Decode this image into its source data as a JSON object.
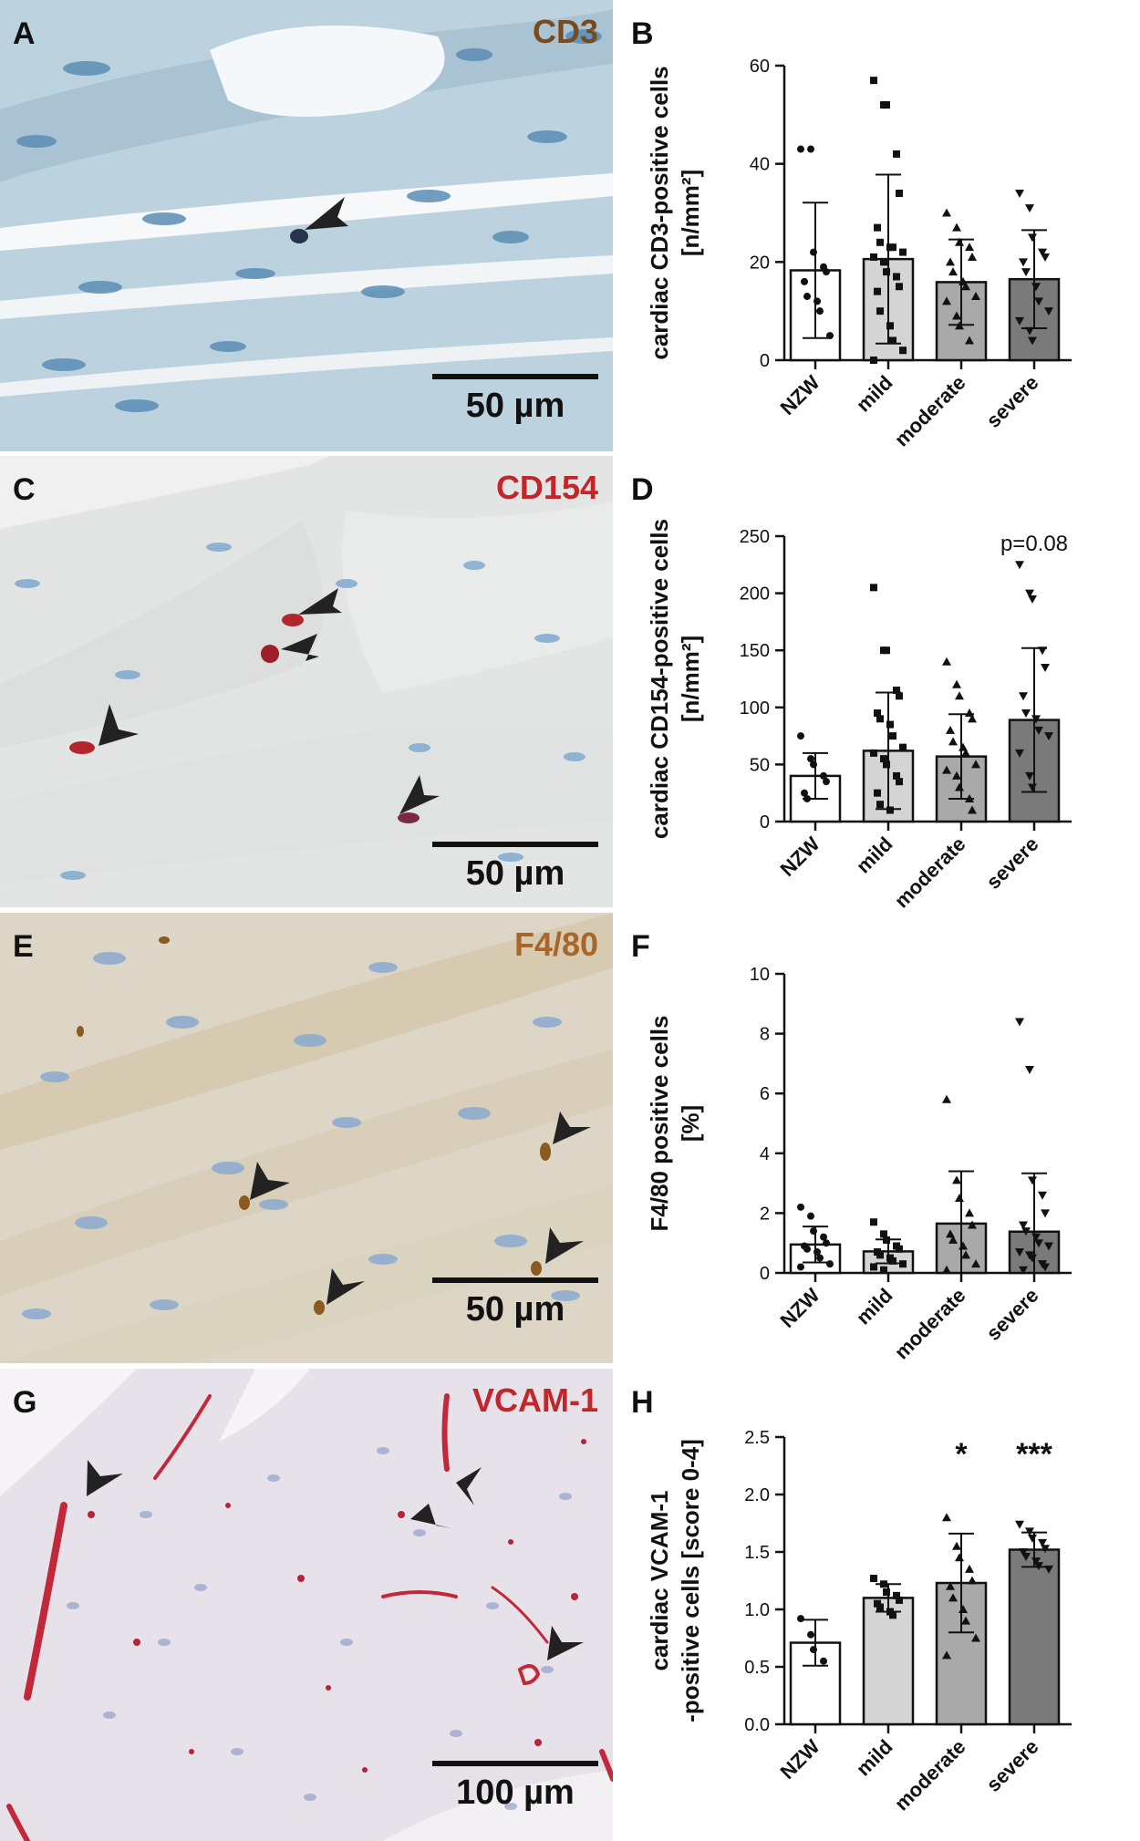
{
  "panels": [
    {
      "letter": "A",
      "stain": "CD3",
      "stain_color": "#7a4a1f",
      "scale": "50 µm",
      "bg": "#bcd3df",
      "top": 0,
      "height": 495
    },
    {
      "letter": "C",
      "stain": "CD154",
      "stain_color": "#c0262a",
      "scale": "50 µm",
      "bg": "#e3e5e4",
      "top": 500,
      "height": 495
    },
    {
      "letter": "E",
      "stain": "F4/80",
      "stain_color": "#a8662a",
      "scale": "50 µm",
      "bg": "#ddd6c6",
      "top": 1001,
      "height": 494
    },
    {
      "letter": "G",
      "stain": "VCAM-1",
      "stain_color": "#c0262a",
      "scale": "100 µm",
      "bg": "#e7e2e9",
      "top": 1501,
      "height": 518
    }
  ],
  "chart_data": [
    {
      "letter": "B",
      "type": "bar",
      "ylabel_lines": [
        "cardiac CD3-positive cells",
        "[n/mm²]"
      ],
      "categories": [
        "NZW",
        "mild",
        "moderate",
        "severe"
      ],
      "values": [
        18.3,
        20.6,
        15.9,
        16.5
      ],
      "sd": [
        13.8,
        17.2,
        8.7,
        10.0
      ],
      "ylim": [
        0,
        60
      ],
      "yticks": [
        0,
        20,
        40,
        60
      ],
      "points": [
        [
          43,
          43,
          22,
          19,
          18,
          16,
          13,
          12,
          10,
          5
        ],
        [
          57,
          52,
          52,
          42,
          34,
          27,
          24,
          23,
          23,
          22,
          21,
          20,
          18,
          17,
          15,
          14,
          10,
          7,
          4,
          2,
          0
        ],
        [
          30,
          27,
          24,
          23,
          21,
          20,
          18,
          16,
          15,
          13,
          12,
          9,
          7,
          4
        ],
        [
          34,
          31,
          25,
          22,
          21,
          20,
          18,
          15,
          12,
          10,
          8,
          6,
          4
        ]
      ],
      "markers": [
        "circle",
        "square",
        "triangle",
        "triangle-down"
      ],
      "annotations": [
        "",
        "",
        "",
        ""
      ]
    },
    {
      "letter": "D",
      "type": "bar",
      "ylabel_lines": [
        "cardiac CD154-positive cells",
        "[n/mm²]"
      ],
      "categories": [
        "NZW",
        "mild",
        "moderate",
        "severe"
      ],
      "values": [
        40,
        62,
        57,
        89
      ],
      "sd": [
        20,
        51,
        37,
        63
      ],
      "ylim": [
        0,
        250
      ],
      "yticks": [
        0,
        50,
        100,
        150,
        200,
        250
      ],
      "points": [
        [
          75,
          55,
          50,
          40,
          35,
          25,
          20
        ],
        [
          205,
          150,
          150,
          115,
          110,
          95,
          90,
          85,
          75,
          65,
          60,
          55,
          50,
          40,
          35,
          25,
          15,
          10
        ],
        [
          140,
          120,
          110,
          95,
          90,
          80,
          70,
          65,
          60,
          50,
          45,
          40,
          30,
          20,
          10
        ],
        [
          225,
          200,
          195,
          150,
          135,
          110,
          95,
          90,
          80,
          75,
          60,
          40,
          30
        ]
      ],
      "markers": [
        "circle",
        "square",
        "triangle",
        "triangle-down"
      ],
      "annotations": [
        "",
        "",
        "",
        "p=0.08"
      ]
    },
    {
      "letter": "F",
      "type": "bar",
      "ylabel_lines": [
        "F4/80 positive cells",
        "[%]"
      ],
      "categories": [
        "NZW",
        "mild",
        "moderate",
        "severe"
      ],
      "values": [
        0.95,
        0.72,
        1.65,
        1.38
      ],
      "sd": [
        0.6,
        0.4,
        1.75,
        1.95
      ],
      "ylim": [
        0,
        10
      ],
      "yticks": [
        0,
        2,
        4,
        6,
        8,
        10
      ],
      "points": [
        [
          2.2,
          1.9,
          1.4,
          1.2,
          1.0,
          0.9,
          0.8,
          0.7,
          0.5,
          0.3,
          0.2
        ],
        [
          1.7,
          1.3,
          1.1,
          0.9,
          0.8,
          0.7,
          0.6,
          0.5,
          0.4,
          0.3,
          0.2,
          0.1
        ],
        [
          5.8,
          3.1,
          2.5,
          2.0,
          1.6,
          1.3,
          1.1,
          0.9,
          0.6,
          0.3,
          0.1
        ],
        [
          8.4,
          6.8,
          3.1,
          2.6,
          2.0,
          1.6,
          1.4,
          1.2,
          1.0,
          0.9,
          0.7,
          0.6,
          0.5,
          0.3,
          0.2,
          0.1
        ]
      ],
      "markers": [
        "circle",
        "square",
        "triangle",
        "triangle-down"
      ],
      "annotations": [
        "",
        "",
        "",
        ""
      ]
    },
    {
      "letter": "H",
      "type": "bar",
      "ylabel_lines": [
        "cardiac VCAM-1",
        "-positive cells [score 0-4]"
      ],
      "categories": [
        "NZW",
        "mild",
        "moderate",
        "severe"
      ],
      "values": [
        0.71,
        1.1,
        1.23,
        1.52
      ],
      "sd": [
        0.2,
        0.12,
        0.43,
        0.15
      ],
      "ylim": [
        0,
        2.5
      ],
      "yticks": [
        0.0,
        0.5,
        1.0,
        1.5,
        2.0,
        2.5
      ],
      "points": [
        [
          0.92,
          0.78,
          0.65,
          0.55
        ],
        [
          1.27,
          1.22,
          1.15,
          1.12,
          1.08,
          1.05,
          1.02,
          0.98,
          0.95
        ],
        [
          1.8,
          1.55,
          1.45,
          1.35,
          1.25,
          1.2,
          1.1,
          1.0,
          0.9,
          0.75,
          0.6
        ],
        [
          1.74,
          1.68,
          1.62,
          1.58,
          1.53,
          1.5,
          1.46,
          1.42,
          1.38,
          1.35
        ]
      ],
      "markers": [
        "circle",
        "square",
        "triangle",
        "triangle-down"
      ],
      "annotations": [
        "",
        "",
        "*",
        "***"
      ]
    }
  ],
  "chart_layout_colors": {
    "bars": [
      "#ffffff",
      "#d4d4d4",
      "#a9a9a9",
      "#7a7a7a"
    ]
  }
}
